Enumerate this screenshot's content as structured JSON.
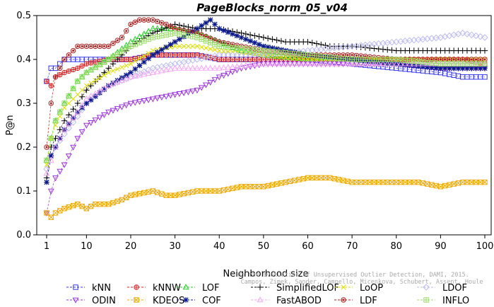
{
  "chart_data": {
    "type": "line",
    "title": "PageBlocks_norm_05_v04",
    "xlabel": "Neighborhood size",
    "ylabel": "P@n",
    "xlim": [
      1,
      100
    ],
    "ylim": [
      0,
      0.5
    ],
    "xticks": [
      1,
      10,
      20,
      30,
      40,
      50,
      60,
      70,
      80,
      90,
      100
    ],
    "yticks": [
      0.0,
      0.1,
      0.2,
      0.3,
      0.4,
      0.5
    ],
    "ytick_labels": [
      "0.0",
      "0.1",
      "0.2",
      "0.3",
      "0.4",
      "0.5"
    ],
    "grid": false,
    "legend_position": "bottom",
    "watermark": [
      "On the Evaluation of Unsupervised Outlier Detection, DAMI, 2015.",
      "Campos, Zimek, Sander, Campello, Micenkova, Schubert, Assent, Houle"
    ],
    "series": [
      {
        "name": "kNN",
        "color": "#3333ee",
        "marker": "square",
        "x": [
          1,
          2,
          3,
          5,
          8,
          10,
          15,
          20,
          25,
          30,
          35,
          40,
          50,
          60,
          70,
          80,
          90,
          95,
          100
        ],
        "y": [
          0.35,
          0.38,
          0.38,
          0.4,
          0.4,
          0.4,
          0.4,
          0.4,
          0.41,
          0.41,
          0.41,
          0.4,
          0.4,
          0.4,
          0.39,
          0.38,
          0.37,
          0.36,
          0.36
        ]
      },
      {
        "name": "kNNW",
        "color": "#dd2222",
        "marker": "circle-cross",
        "x": [
          1,
          2,
          3,
          5,
          8,
          10,
          15,
          20,
          25,
          30,
          35,
          40,
          50,
          60,
          70,
          80,
          90,
          95,
          100
        ],
        "y": [
          0.35,
          0.34,
          0.36,
          0.37,
          0.38,
          0.39,
          0.4,
          0.4,
          0.41,
          0.41,
          0.41,
          0.4,
          0.4,
          0.4,
          0.4,
          0.4,
          0.4,
          0.4,
          0.39
        ]
      },
      {
        "name": "LOF",
        "color": "#22cc22",
        "marker": "triangle",
        "x": [
          1,
          2,
          3,
          5,
          8,
          10,
          15,
          20,
          25,
          30,
          35,
          40,
          45,
          50,
          60,
          70,
          80,
          90,
          100
        ],
        "y": [
          0.17,
          0.22,
          0.26,
          0.3,
          0.35,
          0.37,
          0.4,
          0.44,
          0.47,
          0.47,
          0.46,
          0.44,
          0.42,
          0.41,
          0.4,
          0.4,
          0.39,
          0.39,
          0.39
        ]
      },
      {
        "name": "SimplifiedLOF",
        "color": "#000000",
        "marker": "plus",
        "x": [
          1,
          2,
          3,
          5,
          8,
          10,
          15,
          20,
          25,
          30,
          35,
          40,
          45,
          50,
          55,
          60,
          65,
          70,
          80,
          90,
          100
        ],
        "y": [
          0.13,
          0.2,
          0.22,
          0.26,
          0.3,
          0.33,
          0.38,
          0.43,
          0.46,
          0.48,
          0.47,
          0.47,
          0.46,
          0.45,
          0.44,
          0.44,
          0.43,
          0.43,
          0.42,
          0.42,
          0.42
        ]
      },
      {
        "name": "LoOP",
        "color": "#dddd00",
        "marker": "x",
        "x": [
          1,
          2,
          3,
          5,
          8,
          10,
          15,
          20,
          25,
          30,
          35,
          40,
          50,
          60,
          70,
          80,
          90,
          100
        ],
        "y": [
          0.16,
          0.22,
          0.25,
          0.29,
          0.32,
          0.34,
          0.37,
          0.39,
          0.42,
          0.43,
          0.43,
          0.42,
          0.41,
          0.4,
          0.4,
          0.4,
          0.4,
          0.4
        ]
      },
      {
        "name": "LDOF",
        "color": "#bbbbee",
        "marker": "diamond",
        "x": [
          1,
          2,
          3,
          5,
          8,
          10,
          15,
          20,
          25,
          30,
          35,
          40,
          50,
          60,
          70,
          80,
          90,
          95,
          100
        ],
        "y": [
          0.15,
          0.18,
          0.2,
          0.23,
          0.27,
          0.3,
          0.34,
          0.36,
          0.38,
          0.39,
          0.4,
          0.41,
          0.41,
          0.42,
          0.43,
          0.44,
          0.45,
          0.46,
          0.45
        ]
      },
      {
        "name": "ODIN",
        "color": "#9933dd",
        "marker": "triangle-down",
        "x": [
          1,
          2,
          3,
          5,
          8,
          10,
          15,
          20,
          25,
          30,
          35,
          40,
          45,
          50,
          55,
          60,
          70,
          80,
          90,
          100
        ],
        "y": [
          0.05,
          0.1,
          0.13,
          0.16,
          0.22,
          0.25,
          0.28,
          0.3,
          0.31,
          0.32,
          0.33,
          0.36,
          0.38,
          0.39,
          0.39,
          0.39,
          0.39,
          0.39,
          0.38,
          0.38
        ]
      },
      {
        "name": "KDEOS",
        "color": "#eeaa00",
        "marker": "square-x",
        "x": [
          1,
          2,
          3,
          5,
          8,
          10,
          12,
          15,
          18,
          20,
          25,
          28,
          30,
          35,
          40,
          45,
          50,
          55,
          60,
          65,
          70,
          75,
          80,
          85,
          90,
          95,
          100
        ],
        "y": [
          0.05,
          0.04,
          0.05,
          0.06,
          0.07,
          0.06,
          0.07,
          0.07,
          0.08,
          0.09,
          0.1,
          0.09,
          0.09,
          0.1,
          0.1,
          0.11,
          0.11,
          0.12,
          0.13,
          0.13,
          0.12,
          0.12,
          0.12,
          0.12,
          0.11,
          0.12,
          0.12
        ]
      },
      {
        "name": "COF",
        "color": "#0b1a8a",
        "marker": "asterisk",
        "x": [
          1,
          2,
          3,
          5,
          8,
          10,
          15,
          20,
          25,
          30,
          35,
          38,
          40,
          45,
          50,
          60,
          70,
          80,
          90,
          100
        ],
        "y": [
          0.12,
          0.18,
          0.2,
          0.24,
          0.28,
          0.3,
          0.34,
          0.37,
          0.41,
          0.44,
          0.47,
          0.49,
          0.47,
          0.45,
          0.43,
          0.41,
          0.4,
          0.39,
          0.38,
          0.38
        ]
      },
      {
        "name": "FastABOD",
        "color": "#f2aaf2",
        "marker": "triangle-up-open",
        "x": [
          1,
          2,
          3,
          5,
          8,
          10,
          15,
          20,
          25,
          30,
          35,
          40,
          50,
          60,
          70,
          80,
          90,
          100
        ],
        "y": [
          0.14,
          0.17,
          0.2,
          0.24,
          0.28,
          0.31,
          0.34,
          0.36,
          0.37,
          0.38,
          0.38,
          0.38,
          0.39,
          0.39,
          0.39,
          0.39,
          0.39,
          0.39
        ]
      },
      {
        "name": "LDF",
        "color": "#aa2222",
        "marker": "circle-dot",
        "x": [
          1,
          2,
          3,
          5,
          8,
          10,
          15,
          18,
          20,
          22,
          25,
          28,
          30,
          35,
          40,
          50,
          60,
          70,
          80,
          90,
          100
        ],
        "y": [
          0.2,
          0.3,
          0.36,
          0.4,
          0.43,
          0.43,
          0.43,
          0.45,
          0.48,
          0.49,
          0.49,
          0.48,
          0.47,
          0.46,
          0.44,
          0.42,
          0.41,
          0.41,
          0.4,
          0.4,
          0.4
        ]
      },
      {
        "name": "INFLO",
        "color": "#99dd66",
        "marker": "square-cross",
        "x": [
          1,
          2,
          3,
          5,
          8,
          10,
          15,
          20,
          25,
          30,
          35,
          40,
          50,
          60,
          70,
          80,
          90,
          100
        ],
        "y": [
          0.17,
          0.22,
          0.26,
          0.3,
          0.35,
          0.37,
          0.4,
          0.43,
          0.45,
          0.46,
          0.45,
          0.43,
          0.42,
          0.41,
          0.4,
          0.4,
          0.39,
          0.39
        ]
      }
    ]
  }
}
